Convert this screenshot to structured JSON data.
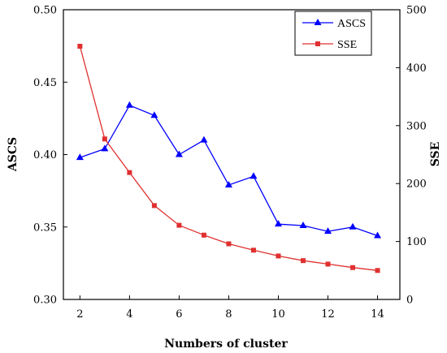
{
  "chart_data": {
    "type": "line",
    "xlabel": "Numbers of cluster",
    "ylabel_left": "ASCS",
    "ylabel_right": "SSE",
    "x": [
      2,
      3,
      4,
      5,
      6,
      7,
      8,
      9,
      10,
      11,
      12,
      13,
      14
    ],
    "xticks": [
      "2",
      "4",
      "6",
      "8",
      "10",
      "12",
      "14"
    ],
    "xlim": [
      1.333,
      14.9
    ],
    "y_left_lim": [
      0.3,
      0.5
    ],
    "y_left_ticks": [
      "0.30",
      "0.35",
      "0.40",
      "0.45",
      "0.50"
    ],
    "y_right_lim": [
      0,
      500
    ],
    "y_right_ticks": [
      "0",
      "100",
      "200",
      "300",
      "400",
      "500"
    ],
    "grid": false,
    "legend_position": "top-right",
    "series": [
      {
        "name": "ASCS",
        "axis": "left",
        "color": "#0000ff",
        "marker": "triangle",
        "values": [
          0.398,
          0.404,
          0.434,
          0.427,
          0.4,
          0.41,
          0.379,
          0.385,
          0.352,
          0.351,
          0.347,
          0.35,
          0.344
        ]
      },
      {
        "name": "SSE",
        "axis": "right",
        "color": "#e03030",
        "marker": "square",
        "values": [
          437,
          277,
          219,
          162,
          128,
          111,
          96,
          85,
          75,
          67,
          61,
          55,
          50
        ]
      }
    ]
  }
}
